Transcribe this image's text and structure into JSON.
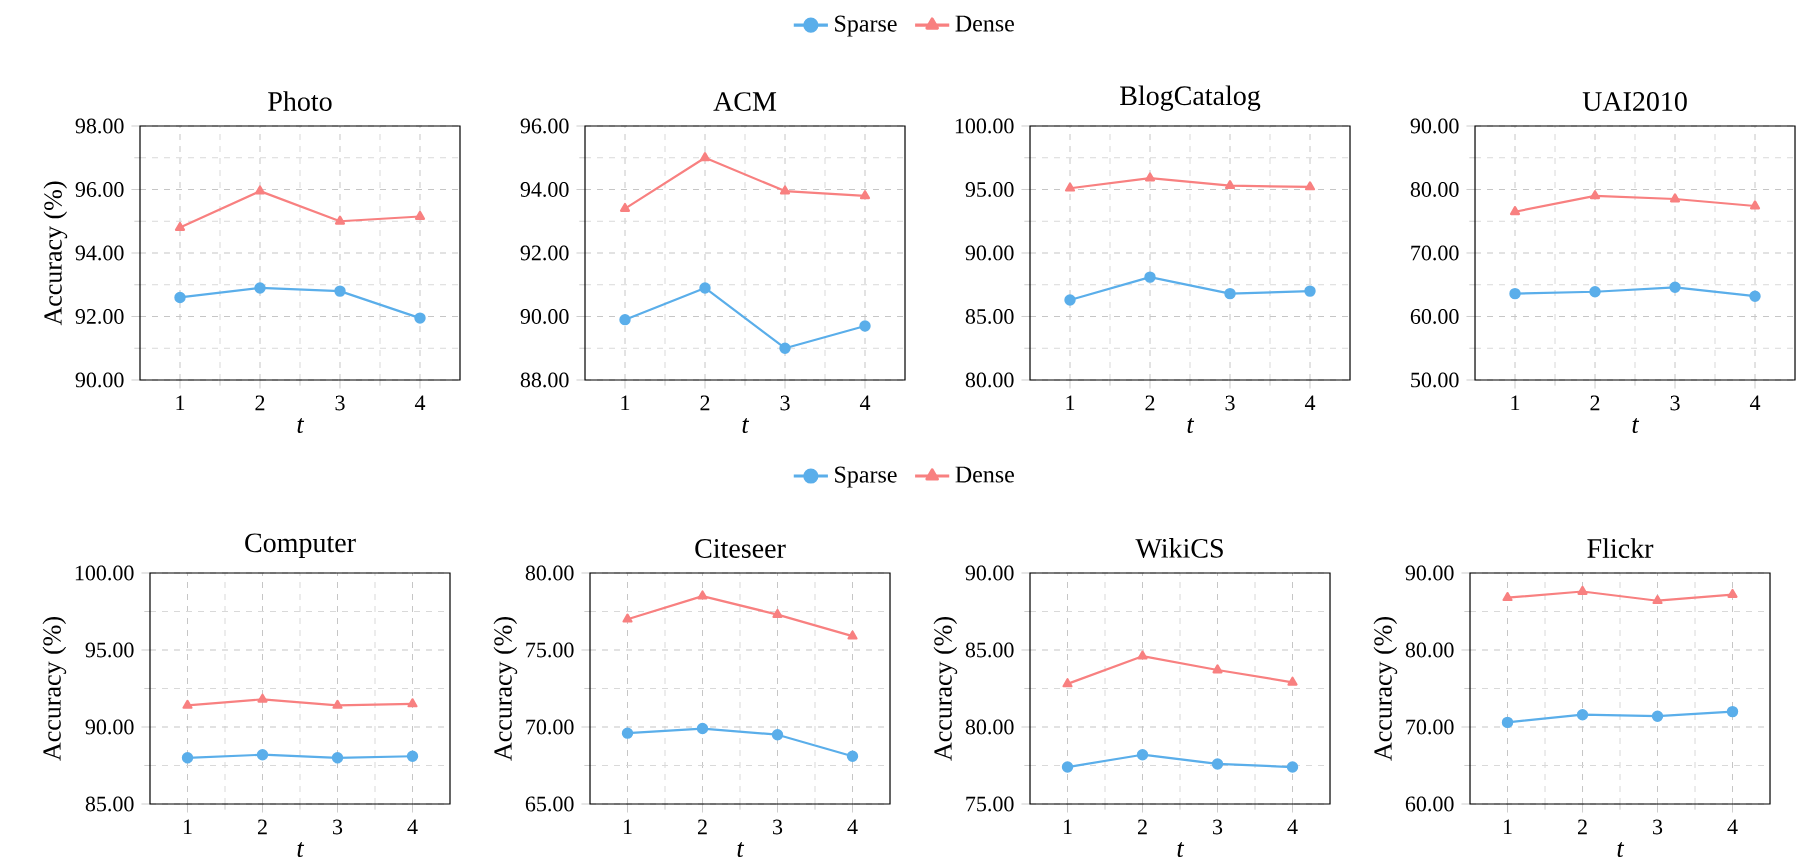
{
  "chart_data": [
    {
      "type": "line",
      "title": "Photo",
      "xlabel": "t",
      "ylabel": "Accuracy (%)",
      "x": [
        1,
        2,
        3,
        4
      ],
      "xlim": [
        0.5,
        4.5
      ],
      "xticks": [
        1,
        2,
        3,
        4
      ],
      "ylim": [
        90,
        98
      ],
      "yticks": [
        {
          "value": 90,
          "label": "90.00"
        },
        {
          "value": 92,
          "label": "92.00"
        },
        {
          "value": 94,
          "label": "94.00"
        },
        {
          "value": 96,
          "label": "96.00"
        },
        {
          "value": 98,
          "label": "98.00"
        }
      ],
      "grid": true,
      "legend": "top",
      "series": [
        {
          "name": "Sparse",
          "color": "#5aaeea",
          "marker": "circle",
          "values": [
            92.6,
            92.9,
            92.8,
            91.95
          ]
        },
        {
          "name": "Dense",
          "color": "#f88080",
          "marker": "triangle",
          "values": [
            94.8,
            95.95,
            95.0,
            95.15
          ]
        }
      ]
    },
    {
      "type": "line",
      "title": "ACM",
      "xlabel": "t",
      "x": [
        1,
        2,
        3,
        4
      ],
      "xlim": [
        0.5,
        4.5
      ],
      "xticks": [
        1,
        2,
        3,
        4
      ],
      "ylim": [
        88,
        96
      ],
      "yticks": [
        {
          "value": 88,
          "label": "88.00"
        },
        {
          "value": 90,
          "label": "90.00"
        },
        {
          "value": 92,
          "label": "92.00"
        },
        {
          "value": 94,
          "label": "94.00"
        },
        {
          "value": 96,
          "label": "96.00"
        }
      ],
      "grid": true,
      "series": [
        {
          "color": "#5aaeea",
          "marker": "circle",
          "values": [
            89.9,
            90.9,
            89.0,
            89.7
          ]
        },
        {
          "color": "#f88080",
          "marker": "triangle",
          "values": [
            93.4,
            95.0,
            93.95,
            93.8
          ]
        }
      ]
    },
    {
      "type": "line",
      "title": "BlogCatalog",
      "xlabel": "t",
      "x": [
        1,
        2,
        3,
        4
      ],
      "xlim": [
        0.5,
        4.5
      ],
      "xticks": [
        1,
        2,
        3,
        4
      ],
      "ylim": [
        80,
        100
      ],
      "yticks": [
        {
          "value": 80,
          "label": "80.00"
        },
        {
          "value": 85,
          "label": "85.00"
        },
        {
          "value": 90,
          "label": "90.00"
        },
        {
          "value": 95,
          "label": "95.00"
        },
        {
          "value": 100,
          "label": "100.00"
        }
      ],
      "grid": true,
      "series": [
        {
          "color": "#5aaeea",
          "marker": "circle",
          "values": [
            86.3,
            88.1,
            86.8,
            87.0
          ]
        },
        {
          "color": "#f88080",
          "marker": "triangle",
          "values": [
            95.1,
            95.9,
            95.3,
            95.2
          ]
        }
      ]
    },
    {
      "type": "line",
      "title": "UAI2010",
      "xlabel": "t",
      "x": [
        1,
        2,
        3,
        4
      ],
      "xlim": [
        0.5,
        4.5
      ],
      "xticks": [
        1,
        2,
        3,
        4
      ],
      "ylim": [
        50,
        90
      ],
      "yticks": [
        {
          "value": 50,
          "label": "50.00"
        },
        {
          "value": 60,
          "label": "60.00"
        },
        {
          "value": 70,
          "label": "70.00"
        },
        {
          "value": 80,
          "label": "80.00"
        },
        {
          "value": 90,
          "label": "90.00"
        }
      ],
      "grid": true,
      "series": [
        {
          "color": "#5aaeea",
          "marker": "circle",
          "values": [
            63.6,
            63.9,
            64.6,
            63.2
          ]
        },
        {
          "color": "#f88080",
          "marker": "triangle",
          "values": [
            76.5,
            79.0,
            78.5,
            77.4
          ]
        }
      ]
    },
    {
      "type": "line",
      "title": "Computer",
      "xlabel": "t",
      "ylabel": "Accuracy (%)",
      "x": [
        1,
        2,
        3,
        4
      ],
      "xlim": [
        0.5,
        4.5
      ],
      "xticks": [
        1,
        2,
        3,
        4
      ],
      "ylim": [
        85,
        100
      ],
      "yticks": [
        {
          "value": 85,
          "label": "85.00"
        },
        {
          "value": 90,
          "label": "90.00"
        },
        {
          "value": 95,
          "label": "95.00"
        },
        {
          "value": 100,
          "label": "100.00"
        }
      ],
      "grid": true,
      "legend": "top",
      "series": [
        {
          "name": "Sparse",
          "color": "#5aaeea",
          "marker": "circle",
          "values": [
            88.0,
            88.2,
            88.0,
            88.1
          ]
        },
        {
          "name": "Dense",
          "color": "#f88080",
          "marker": "triangle",
          "values": [
            91.4,
            91.8,
            91.4,
            91.5
          ]
        }
      ]
    },
    {
      "type": "line",
      "title": "Citeseer",
      "xlabel": "t",
      "ylabel": "Accuracy (%)",
      "x": [
        1,
        2,
        3,
        4
      ],
      "xlim": [
        0.5,
        4.5
      ],
      "xticks": [
        1,
        2,
        3,
        4
      ],
      "ylim": [
        65,
        80
      ],
      "yticks": [
        {
          "value": 65,
          "label": "65.00"
        },
        {
          "value": 70,
          "label": "70.00"
        },
        {
          "value": 75,
          "label": "75.00"
        },
        {
          "value": 80,
          "label": "80.00"
        }
      ],
      "grid": true,
      "series": [
        {
          "color": "#5aaeea",
          "marker": "circle",
          "values": [
            69.6,
            69.9,
            69.5,
            68.1
          ]
        },
        {
          "color": "#f88080",
          "marker": "triangle",
          "values": [
            77.0,
            78.5,
            77.3,
            75.9
          ]
        }
      ]
    },
    {
      "type": "line",
      "title": "WikiCS",
      "xlabel": "t",
      "ylabel": "Accuracy (%)",
      "x": [
        1,
        2,
        3,
        4
      ],
      "xlim": [
        0.5,
        4.5
      ],
      "xticks": [
        1,
        2,
        3,
        4
      ],
      "ylim": [
        75,
        90
      ],
      "yticks": [
        {
          "value": 75,
          "label": "75.00"
        },
        {
          "value": 80,
          "label": "80.00"
        },
        {
          "value": 85,
          "label": "85.00"
        },
        {
          "value": 90,
          "label": "90.00"
        }
      ],
      "grid": true,
      "series": [
        {
          "color": "#5aaeea",
          "marker": "circle",
          "values": [
            77.4,
            78.2,
            77.6,
            77.4
          ]
        },
        {
          "color": "#f88080",
          "marker": "triangle",
          "values": [
            82.8,
            84.6,
            83.7,
            82.9
          ]
        }
      ]
    },
    {
      "type": "line",
      "title": "Flickr",
      "xlabel": "t",
      "ylabel": "Accuracy (%)",
      "x": [
        1,
        2,
        3,
        4
      ],
      "xlim": [
        0.5,
        4.5
      ],
      "xticks": [
        1,
        2,
        3,
        4
      ],
      "ylim": [
        60,
        90
      ],
      "yticks": [
        {
          "value": 60,
          "label": "60.00"
        },
        {
          "value": 70,
          "label": "70.00"
        },
        {
          "value": 80,
          "label": "80.00"
        },
        {
          "value": 90,
          "label": "90.00"
        }
      ],
      "grid": true,
      "series": [
        {
          "color": "#5aaeea",
          "marker": "circle",
          "values": [
            70.6,
            71.6,
            71.4,
            72.0
          ]
        },
        {
          "color": "#f88080",
          "marker": "triangle",
          "values": [
            86.8,
            87.6,
            86.4,
            87.2
          ]
        }
      ]
    }
  ]
}
